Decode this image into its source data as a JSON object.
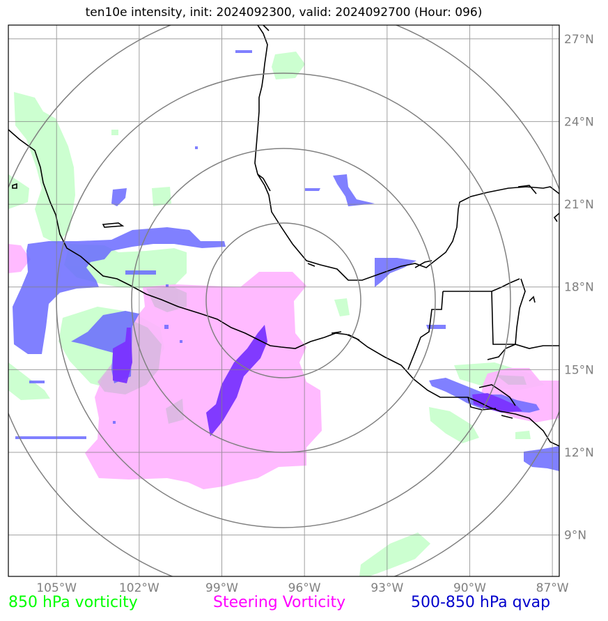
{
  "title": "ten10e intensity, init: 2024092300, valid: 2024092700 (Hour: 096)",
  "axes": {
    "lon_ticks": [
      "105°W",
      "102°W",
      "99°W",
      "96°W",
      "93°W",
      "90°W",
      "87°W"
    ],
    "lat_ticks": [
      "27°N",
      "24°N",
      "21°N",
      "18°N",
      "15°N",
      "12°N",
      "9°N"
    ],
    "lon_values": [
      -105,
      -102,
      -99,
      -96,
      -93,
      -90,
      -87
    ],
    "lat_values": [
      27,
      24,
      21,
      18,
      15,
      12,
      9
    ],
    "lon_range": [
      -106.75,
      -86.75
    ],
    "lat_range": [
      7.5,
      27.5
    ]
  },
  "storm_center": {
    "lon": -96.75,
    "lat": 17.5
  },
  "range_rings_deg": [
    2.8,
    5.5,
    8.25,
    10.8
  ],
  "legend": [
    {
      "label": "850 hPa vorticity",
      "color": "#00ff00"
    },
    {
      "label": "Steering Vorticity",
      "color": "#ff00ff"
    },
    {
      "label": "500-850 hPa qvap",
      "color": "#0000cc"
    }
  ],
  "colors": {
    "vorticity_fill": "#ccffd0",
    "steering_fill": "#ffb3ff",
    "qvap_fill": "#6666ff",
    "gridline": "#808080",
    "coastline": "#000000"
  }
}
